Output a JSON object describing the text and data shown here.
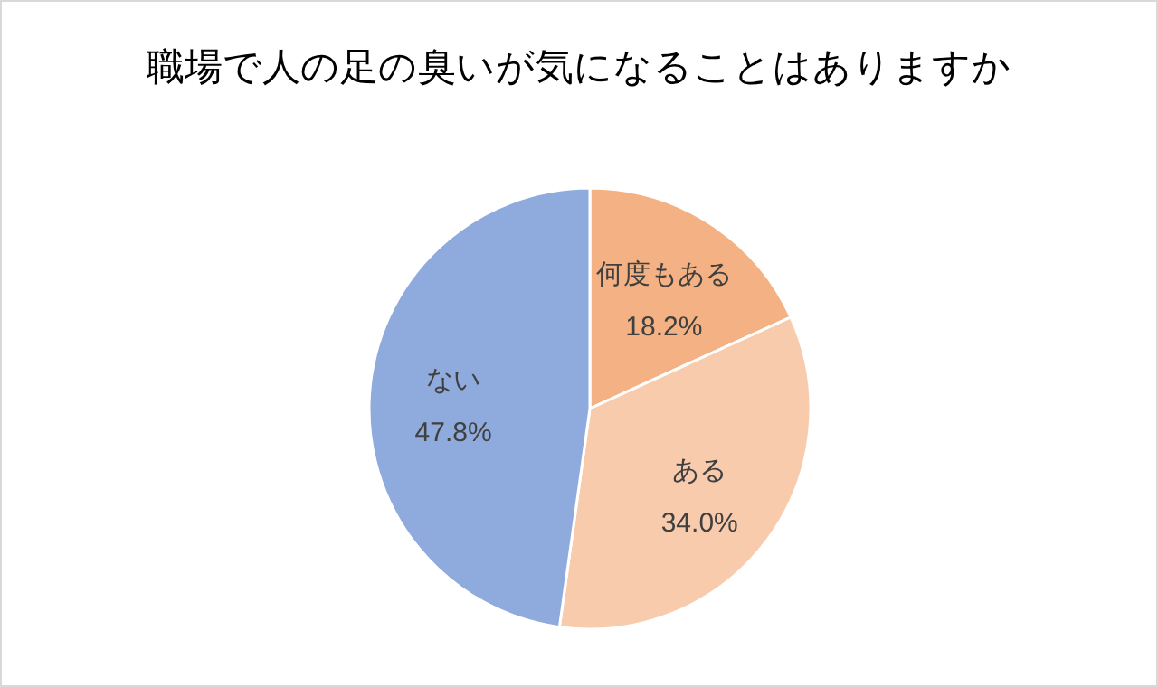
{
  "chart_data": {
    "type": "pie",
    "title": "職場で人の足の臭いが気になることはありますか",
    "categories": [
      "何度もある",
      "ある",
      "ない"
    ],
    "values": [
      18.2,
      34.0,
      47.8
    ],
    "colors": [
      "#f4b183",
      "#f8cbad",
      "#8faadc"
    ],
    "value_labels": [
      "18.2%",
      "34.0%",
      "47.8%"
    ]
  }
}
